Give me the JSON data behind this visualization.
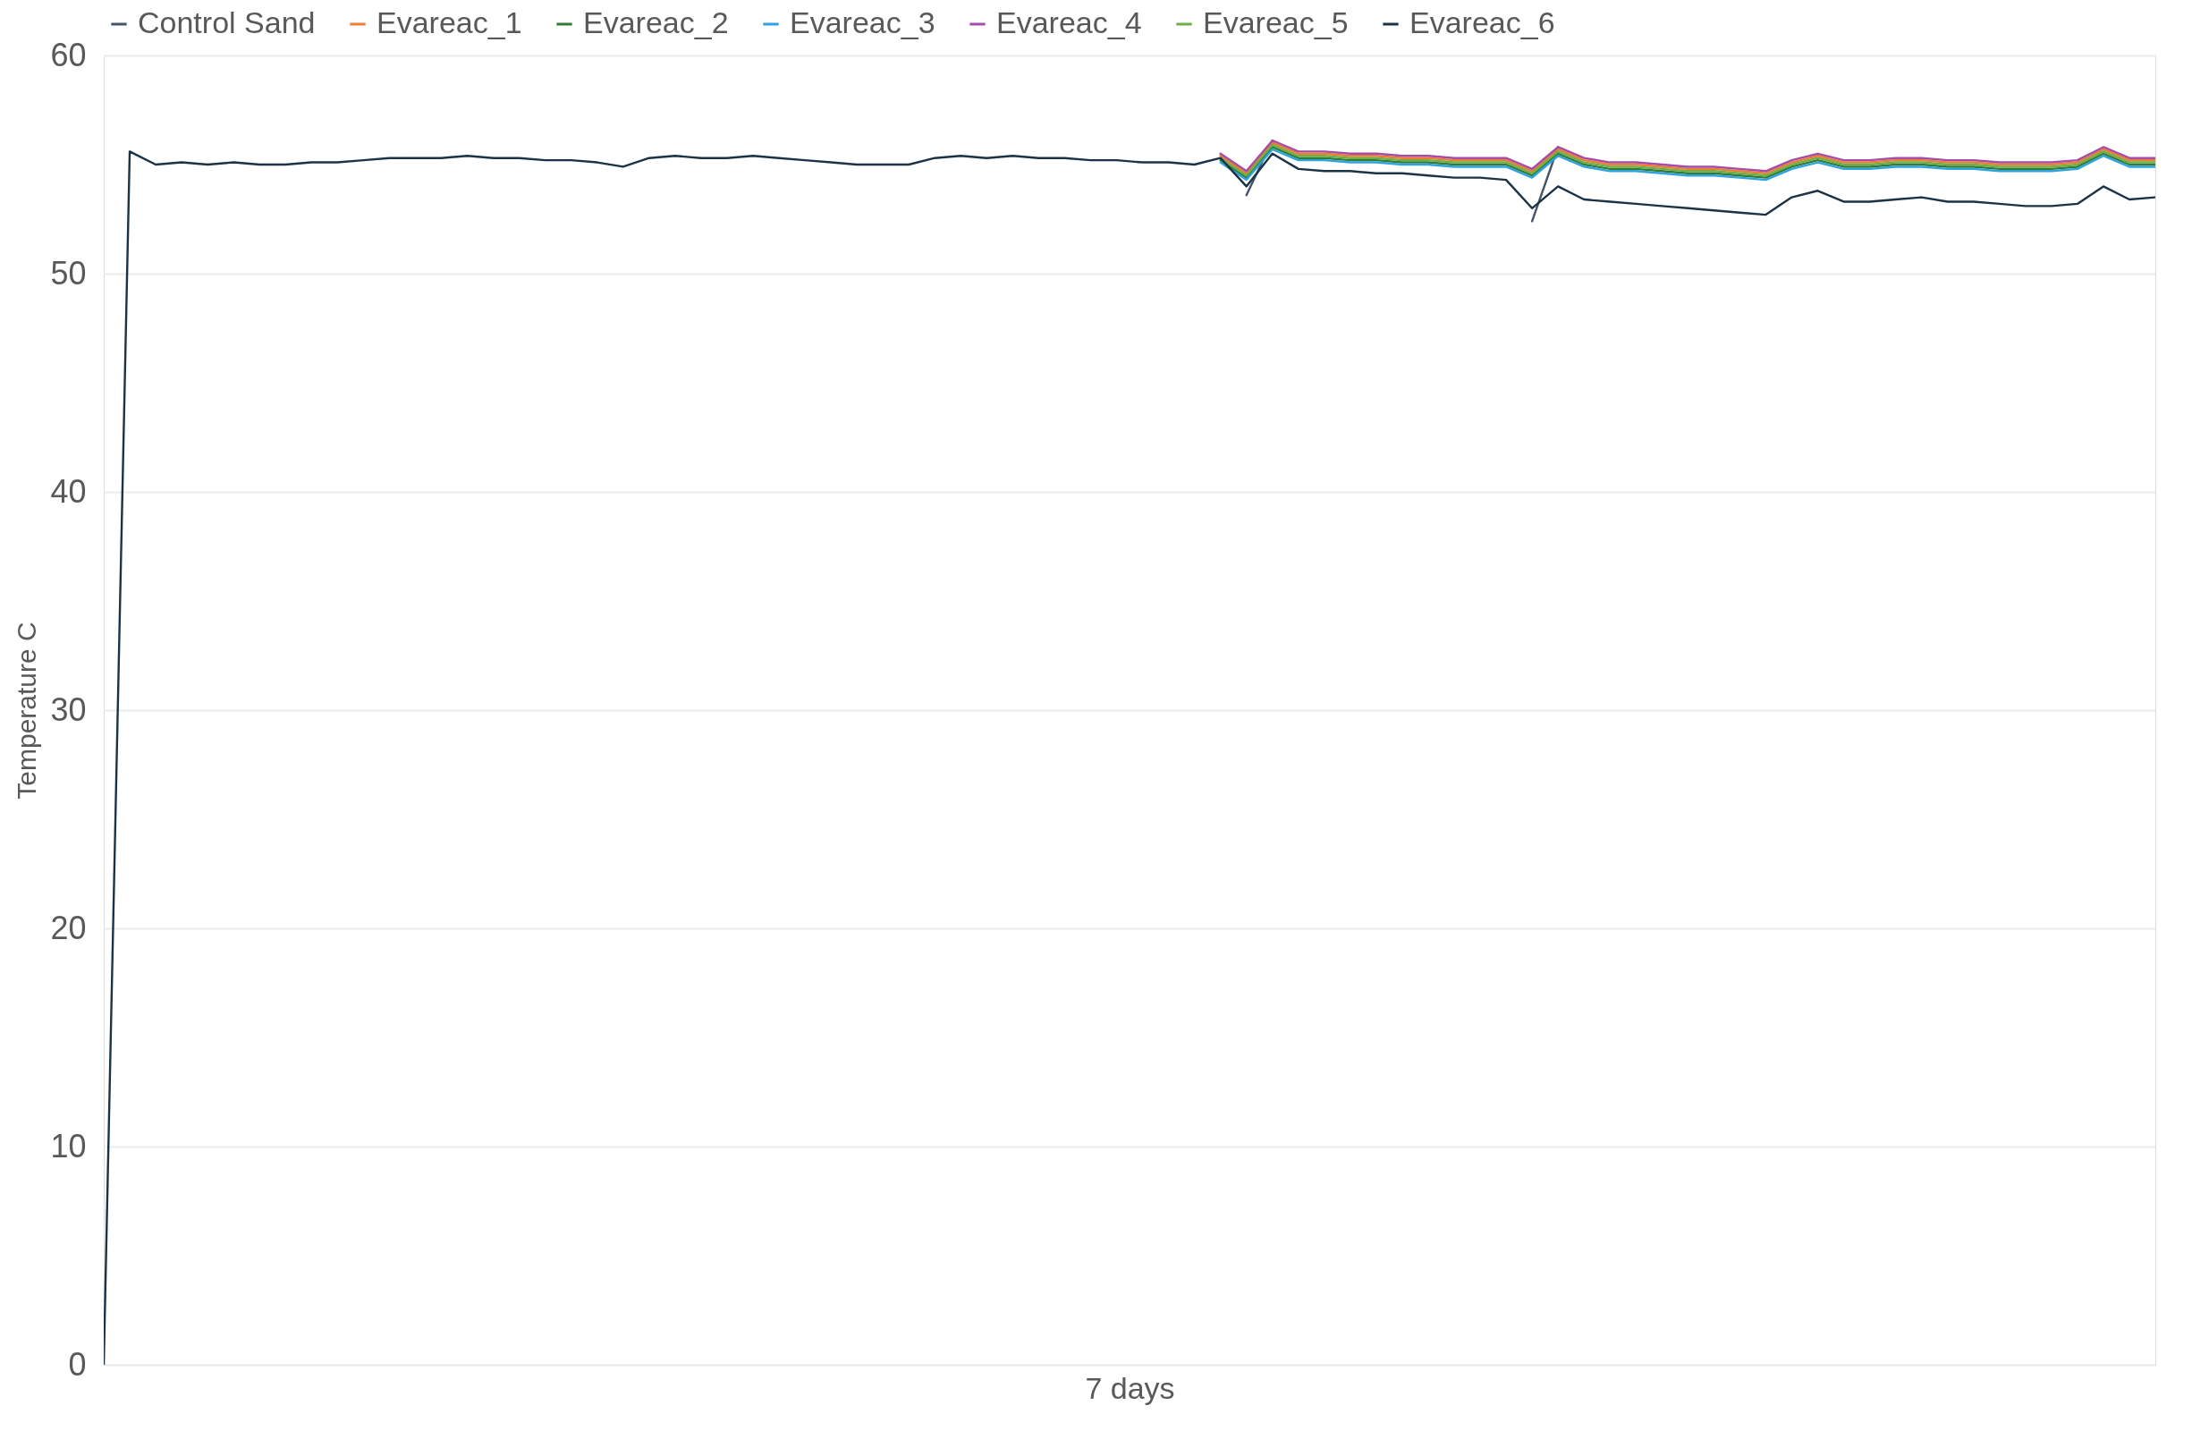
{
  "chart_data": {
    "type": "line",
    "xlabel": "7 days",
    "ylabel": "Temperature C",
    "categories": [
      null,
      null,
      null,
      null,
      null,
      null,
      null,
      null,
      null,
      null,
      null,
      null,
      null,
      null,
      null,
      null,
      null,
      null,
      null,
      null,
      null,
      null,
      null,
      null,
      null,
      null,
      null,
      null,
      null,
      null,
      null,
      null,
      null,
      null,
      null,
      null,
      null,
      null,
      null,
      null,
      null,
      null,
      null,
      null,
      null,
      null,
      null,
      null,
      null,
      null,
      null,
      null,
      null,
      null,
      null,
      null,
      null,
      null,
      null,
      null,
      null,
      null,
      null,
      null,
      null,
      null,
      null,
      null,
      null,
      null,
      null,
      null,
      null,
      null,
      null,
      null,
      null,
      null,
      null,
      null
    ],
    "ylim": [
      0,
      60
    ],
    "yticks": [
      0,
      10,
      20,
      30,
      40,
      50,
      60
    ],
    "grid": "y",
    "legend": "top",
    "line_style": "solid",
    "series": [
      {
        "name": "Control Sand",
        "color": "#44546a",
        "values": [
          null,
          null,
          null,
          null,
          null,
          null,
          null,
          null,
          null,
          null,
          null,
          null,
          null,
          null,
          null,
          null,
          null,
          null,
          null,
          null,
          null,
          null,
          null,
          null,
          null,
          null,
          null,
          null,
          null,
          null,
          null,
          null,
          null,
          null,
          null,
          null,
          null,
          null,
          null,
          null,
          null,
          null,
          null,
          null,
          53.6,
          56.1,
          null,
          null,
          null,
          null,
          null,
          null,
          null,
          null,
          null,
          52.4,
          55.8,
          null,
          null,
          null,
          null,
          null,
          null,
          null,
          null,
          null,
          null,
          null,
          null,
          null,
          null,
          null,
          null,
          null,
          null,
          null,
          null,
          null,
          null,
          null
        ]
      },
      {
        "name": "Evareac_1",
        "color": "#ed7d31",
        "values": [
          null,
          null,
          null,
          null,
          null,
          null,
          null,
          null,
          null,
          null,
          null,
          null,
          null,
          null,
          null,
          null,
          null,
          null,
          null,
          null,
          null,
          null,
          null,
          null,
          null,
          null,
          null,
          null,
          null,
          null,
          null,
          null,
          null,
          null,
          null,
          null,
          null,
          null,
          null,
          null,
          null,
          null,
          null,
          55.4,
          54.6,
          56.0,
          55.5,
          55.5,
          55.4,
          55.4,
          55.3,
          55.3,
          55.2,
          55.2,
          55.2,
          54.7,
          55.7,
          55.2,
          55.0,
          55.0,
          54.9,
          54.8,
          54.8,
          54.7,
          54.6,
          55.1,
          55.4,
          55.1,
          55.1,
          55.2,
          55.2,
          55.1,
          55.1,
          55.0,
          55.0,
          55.0,
          55.1,
          55.7,
          55.2,
          55.2
        ]
      },
      {
        "name": "Evareac_2",
        "color": "#2e7d32",
        "values": [
          null,
          null,
          null,
          null,
          null,
          null,
          null,
          null,
          null,
          null,
          null,
          null,
          null,
          null,
          null,
          null,
          null,
          null,
          null,
          null,
          null,
          null,
          null,
          null,
          null,
          null,
          null,
          null,
          null,
          null,
          null,
          null,
          null,
          null,
          null,
          null,
          null,
          null,
          null,
          null,
          null,
          null,
          null,
          55.2,
          54.4,
          55.8,
          55.3,
          55.3,
          55.2,
          55.2,
          55.1,
          55.1,
          55.0,
          55.0,
          55.0,
          54.5,
          55.5,
          55.0,
          54.8,
          54.8,
          54.7,
          54.6,
          54.6,
          54.5,
          54.4,
          54.9,
          55.2,
          54.9,
          54.9,
          55.0,
          55.0,
          54.9,
          54.9,
          54.8,
          54.8,
          54.8,
          54.9,
          55.5,
          55.0,
          55.0
        ]
      },
      {
        "name": "Evareac_3",
        "color": "#2fa3e0",
        "values": [
          null,
          null,
          null,
          null,
          null,
          null,
          null,
          null,
          null,
          null,
          null,
          null,
          null,
          null,
          null,
          null,
          null,
          null,
          null,
          null,
          null,
          null,
          null,
          null,
          null,
          null,
          null,
          null,
          null,
          null,
          null,
          null,
          null,
          null,
          null,
          null,
          null,
          null,
          null,
          null,
          null,
          null,
          null,
          55.1,
          54.3,
          55.7,
          55.2,
          55.2,
          55.1,
          55.1,
          55.0,
          55.0,
          54.9,
          54.9,
          54.9,
          54.4,
          55.4,
          54.9,
          54.7,
          54.7,
          54.6,
          54.5,
          54.5,
          54.4,
          54.3,
          54.8,
          55.1,
          54.8,
          54.8,
          54.9,
          54.9,
          54.8,
          54.8,
          54.7,
          54.7,
          54.7,
          54.8,
          55.4,
          54.9,
          54.9
        ]
      },
      {
        "name": "Evareac_4",
        "color": "#a64ca6",
        "values": [
          null,
          null,
          null,
          null,
          null,
          null,
          null,
          null,
          null,
          null,
          null,
          null,
          null,
          null,
          null,
          null,
          null,
          null,
          null,
          null,
          null,
          null,
          null,
          null,
          null,
          null,
          null,
          null,
          null,
          null,
          null,
          null,
          null,
          null,
          null,
          null,
          null,
          null,
          null,
          null,
          null,
          null,
          null,
          55.5,
          54.7,
          56.1,
          55.6,
          55.6,
          55.5,
          55.5,
          55.4,
          55.4,
          55.3,
          55.3,
          55.3,
          54.8,
          55.8,
          55.3,
          55.1,
          55.1,
          55.0,
          54.9,
          54.9,
          54.8,
          54.7,
          55.2,
          55.5,
          55.2,
          55.2,
          55.3,
          55.3,
          55.2,
          55.2,
          55.1,
          55.1,
          55.1,
          55.2,
          55.8,
          55.3,
          55.3
        ]
      },
      {
        "name": "Evareac_5",
        "color": "#70ad47",
        "values": [
          null,
          null,
          null,
          null,
          null,
          null,
          null,
          null,
          null,
          null,
          null,
          null,
          null,
          null,
          null,
          null,
          null,
          null,
          null,
          null,
          null,
          null,
          null,
          null,
          null,
          null,
          null,
          null,
          null,
          null,
          null,
          null,
          null,
          null,
          null,
          null,
          null,
          null,
          null,
          null,
          null,
          null,
          null,
          55.3,
          54.5,
          55.9,
          55.4,
          55.4,
          55.3,
          55.3,
          55.2,
          55.2,
          55.1,
          55.1,
          55.1,
          54.6,
          55.6,
          55.1,
          54.9,
          54.9,
          54.8,
          54.7,
          54.7,
          54.6,
          54.5,
          55.0,
          55.3,
          55.0,
          55.0,
          55.1,
          55.1,
          55.0,
          55.0,
          54.9,
          54.9,
          54.9,
          55.0,
          55.6,
          55.1,
          55.1
        ]
      },
      {
        "name": "Evareac_6",
        "color": "#1b3346",
        "values": [
          0,
          55.6,
          55.0,
          55.1,
          55.0,
          55.1,
          55.0,
          55.0,
          55.1,
          55.1,
          55.2,
          55.3,
          55.3,
          55.3,
          55.4,
          55.3,
          55.3,
          55.2,
          55.2,
          55.1,
          54.9,
          55.3,
          55.4,
          55.3,
          55.3,
          55.4,
          55.3,
          55.2,
          55.1,
          55.0,
          55.0,
          55.0,
          55.3,
          55.4,
          55.3,
          55.4,
          55.3,
          55.3,
          55.2,
          55.2,
          55.1,
          55.1,
          55.0,
          55.3,
          54.0,
          55.5,
          54.8,
          54.7,
          54.7,
          54.6,
          54.6,
          54.5,
          54.4,
          54.4,
          54.3,
          53.0,
          54.0,
          53.4,
          53.3,
          53.2,
          53.1,
          53.0,
          52.9,
          52.8,
          52.7,
          53.5,
          53.8,
          53.3,
          53.3,
          53.4,
          53.5,
          53.3,
          53.3,
          53.2,
          53.1,
          53.1,
          53.2,
          54.0,
          53.4,
          53.5
        ]
      }
    ]
  }
}
